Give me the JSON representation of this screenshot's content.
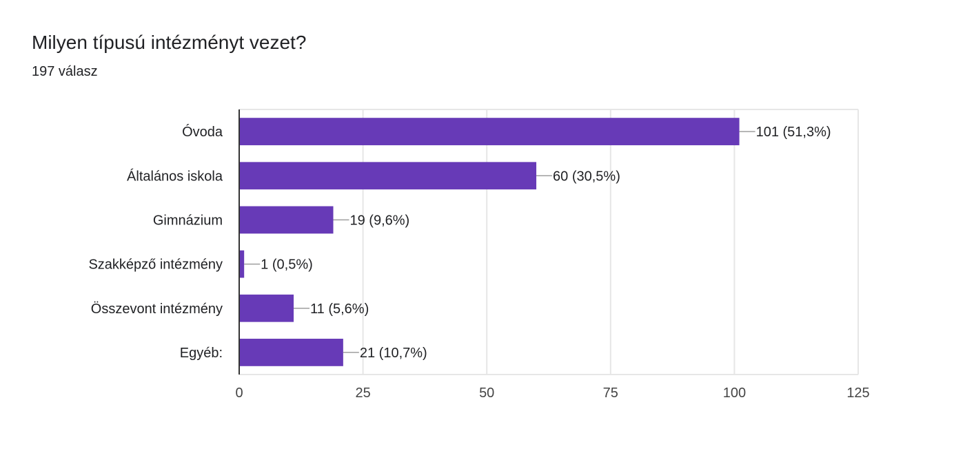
{
  "header": {
    "title": "Milyen típusú intézményt vezet?",
    "response_count": "197 válasz"
  },
  "chart_data": {
    "type": "bar",
    "orientation": "horizontal",
    "title": "Milyen típusú intézményt vezet?",
    "subtitle": "197 válasz",
    "categories": [
      "Óvoda",
      "Általános iskola",
      "Gimnázium",
      "Szakképző intézmény",
      "Összevont intézmény",
      "Egyéb:"
    ],
    "values": [
      101,
      60,
      19,
      1,
      11,
      21
    ],
    "value_labels": [
      "101 (51,3%)",
      "60 (30,5%)",
      "19 (9,6%)",
      "1 (0,5%)",
      "11 (5,6%)",
      "21 (10,7%)"
    ],
    "xlim": [
      0,
      125
    ],
    "xticks": [
      0,
      25,
      50,
      75,
      100,
      125
    ],
    "xtick_labels": [
      "0",
      "25",
      "50",
      "75",
      "100",
      "125"
    ],
    "grid": true,
    "bar_color": "#673ab7"
  }
}
